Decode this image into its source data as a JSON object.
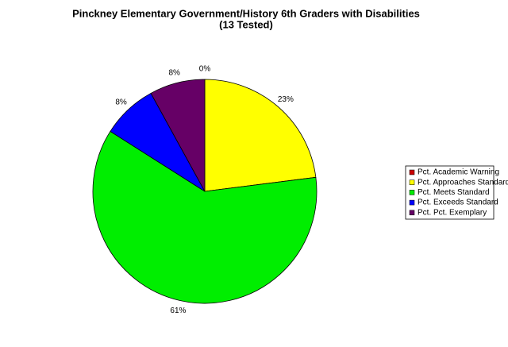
{
  "chart_data": {
    "type": "pie",
    "title": "Pinckney Elementary Government/History 6th Graders with Disabilities",
    "subtitle": "(13 Tested)",
    "categories": [
      "Pct. Academic Warning",
      "Pct. Approaches Standard",
      "Pct. Meets Standard",
      "Pct. Exceeds Standard",
      "Pct. Pct. Exemplary"
    ],
    "values": [
      0,
      23,
      61,
      8,
      8
    ],
    "value_labels": [
      "0%",
      "23%",
      "61%",
      "8%",
      "8%"
    ],
    "colors": [
      "#cc0000",
      "#ffff00",
      "#00ee00",
      "#0000ff",
      "#660066"
    ],
    "legend": "right"
  }
}
